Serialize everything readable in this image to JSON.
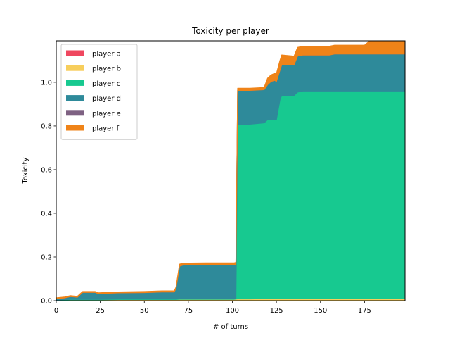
{
  "chart_data": {
    "type": "area",
    "stacked": true,
    "title": "Toxicity per player",
    "xlabel": "# of turns",
    "ylabel": "Toxicity",
    "xlim": [
      0,
      198
    ],
    "ylim": [
      0,
      1.19
    ],
    "xticks": [
      0,
      25,
      50,
      75,
      100,
      125,
      150,
      175
    ],
    "yticks": [
      0.0,
      0.2,
      0.4,
      0.6,
      0.8,
      1.0
    ],
    "ytick_labels": [
      "0.0",
      "0.2",
      "0.4",
      "0.6",
      "0.8",
      "1.0"
    ],
    "grid": false,
    "legend_position": "upper-left",
    "x": [
      0,
      5,
      8,
      12,
      15,
      22,
      24,
      35,
      50,
      60,
      67,
      68,
      70,
      72,
      85,
      101,
      102,
      103,
      110,
      118,
      120,
      122,
      124,
      125,
      127,
      128,
      135,
      137,
      140,
      155,
      158,
      175,
      178,
      198
    ],
    "series": [
      {
        "name": "player a",
        "color": "#ef475f",
        "values": [
          0,
          0,
          0,
          0,
          0,
          0,
          0,
          0,
          0,
          0,
          0,
          0,
          0,
          0,
          0,
          0,
          0,
          0,
          0,
          0,
          0,
          0,
          0,
          0,
          0,
          0,
          0,
          0,
          0,
          0,
          0,
          0,
          0,
          0
        ]
      },
      {
        "name": "player b",
        "color": "#f7ce5c",
        "values": [
          0.002,
          0.003,
          0.004,
          0.004,
          0.004,
          0.004,
          0.004,
          0.005,
          0.005,
          0.005,
          0.005,
          0.005,
          0.006,
          0.006,
          0.006,
          0.006,
          0.007,
          0.008,
          0.008,
          0.009,
          0.009,
          0.009,
          0.009,
          0.009,
          0.01,
          0.01,
          0.01,
          0.01,
          0.01,
          0.01,
          0.01,
          0.01,
          0.01,
          0.01
        ]
      },
      {
        "name": "player c",
        "color": "#17c990",
        "values": [
          0.001,
          0.002,
          0.002,
          0.002,
          0.002,
          0.002,
          0.002,
          0.002,
          0.002,
          0.002,
          0.002,
          0.002,
          0.002,
          0.002,
          0.002,
          0.002,
          0.003,
          0.8,
          0.8,
          0.805,
          0.82,
          0.82,
          0.82,
          0.82,
          0.91,
          0.93,
          0.93,
          0.945,
          0.95,
          0.95,
          0.95,
          0.95,
          0.95,
          0.95
        ]
      },
      {
        "name": "player d",
        "color": "#2e8a9a",
        "values": [
          0.006,
          0.008,
          0.013,
          0.01,
          0.032,
          0.032,
          0.026,
          0.029,
          0.03,
          0.033,
          0.033,
          0.05,
          0.15,
          0.155,
          0.155,
          0.155,
          0.155,
          0.155,
          0.155,
          0.152,
          0.16,
          0.175,
          0.18,
          0.175,
          0.135,
          0.14,
          0.14,
          0.165,
          0.165,
          0.165,
          0.17,
          0.17,
          0.17,
          0.17
        ]
      },
      {
        "name": "player e",
        "color": "#7e6182",
        "values": [
          0,
          0,
          0,
          0,
          0,
          0,
          0,
          0,
          0,
          0,
          0,
          0,
          0,
          0,
          0,
          0,
          0,
          0,
          0,
          0,
          0,
          0,
          0,
          0,
          0,
          0,
          0,
          0,
          0,
          0,
          0,
          0,
          0,
          0
        ]
      },
      {
        "name": "player f",
        "color": "#ef8318",
        "values": [
          0.004,
          0.004,
          0.004,
          0.004,
          0.004,
          0.004,
          0.004,
          0.004,
          0.005,
          0.005,
          0.005,
          0.005,
          0.009,
          0.009,
          0.01,
          0.01,
          0.01,
          0.01,
          0.01,
          0.01,
          0.03,
          0.03,
          0.032,
          0.036,
          0.045,
          0.045,
          0.04,
          0.04,
          0.04,
          0.04,
          0.04,
          0.04,
          0.06,
          0.07
        ]
      }
    ]
  }
}
